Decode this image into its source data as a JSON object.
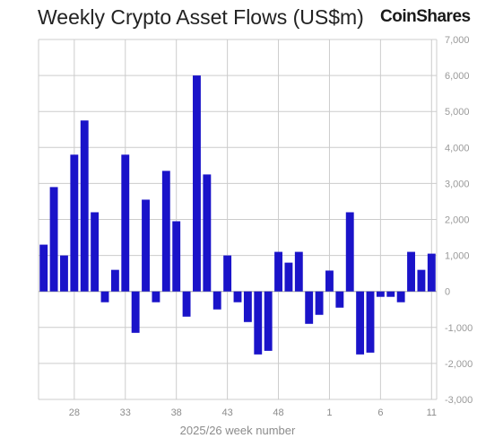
{
  "title": "Weekly Crypto Asset Flows (US$m)",
  "brand": "CoinShares",
  "chart_data": {
    "type": "bar",
    "title": "Weekly Crypto Asset Flows (US$m)",
    "xlabel": "2025/26 week number",
    "ylabel": "",
    "ylim": [
      -3000,
      7000
    ],
    "yticks": [
      7000,
      6000,
      5000,
      4000,
      3000,
      2000,
      1000,
      0,
      -1000,
      -2000,
      -3000
    ],
    "ytick_labels": [
      "7,000",
      "6,000",
      "5,000",
      "4,000",
      "3,000",
      "2,000",
      "1,000",
      "0",
      "-1,000",
      "-2,000",
      "-3,000"
    ],
    "xtick_labels": [
      "28",
      "33",
      "38",
      "43",
      "48",
      "1",
      "6",
      "11"
    ],
    "categories": [
      "25",
      "26",
      "27",
      "28",
      "29",
      "30",
      "31",
      "32",
      "33",
      "34",
      "35",
      "36",
      "37",
      "38",
      "39",
      "40",
      "41",
      "42",
      "43",
      "44",
      "45",
      "46",
      "47",
      "48",
      "49",
      "50",
      "51",
      "52",
      "1",
      "2",
      "3",
      "4",
      "5",
      "6",
      "7",
      "8",
      "9",
      "10",
      "11"
    ],
    "values": [
      1300,
      2900,
      1000,
      3800,
      4750,
      2200,
      -300,
      600,
      3800,
      -1150,
      2550,
      -300,
      3350,
      1950,
      -700,
      6000,
      3250,
      -500,
      1000,
      -300,
      -850,
      -1750,
      -1650,
      1100,
      800,
      1100,
      -900,
      -650,
      580,
      -450,
      2200,
      -1750,
      -1700,
      -150,
      -150,
      -300,
      1100,
      600,
      1050
    ],
    "grid": true,
    "legend": "none",
    "bar_color": "#1a13c9",
    "grid_color": "#cccccc"
  }
}
